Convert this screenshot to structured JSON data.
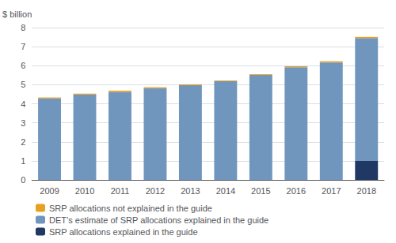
{
  "chart_data": {
    "type": "bar",
    "stacked": true,
    "categories": [
      "2009",
      "2010",
      "2011",
      "2012",
      "2013",
      "2014",
      "2015",
      "2016",
      "2017",
      "2018"
    ],
    "series": [
      {
        "name": "SRP allocations explained in the guide",
        "color": "#1f3864",
        "values": [
          0.0,
          0.0,
          0.0,
          0.0,
          0.0,
          0.0,
          0.0,
          0.0,
          0.0,
          1.0
        ]
      },
      {
        "name": "DET’s estimate of SRP allocations explained in the guide",
        "color": "#7096be",
        "values": [
          4.28,
          4.48,
          4.62,
          4.82,
          4.97,
          5.18,
          5.51,
          5.92,
          6.17,
          6.45
        ]
      },
      {
        "name": "SRP allocations not explained in the guide",
        "color": "#e8a020",
        "values": [
          0.05,
          0.05,
          0.07,
          0.05,
          0.05,
          0.04,
          0.04,
          0.05,
          0.06,
          0.06
        ]
      }
    ],
    "ylabel": "$ billion",
    "ylim": [
      0,
      8
    ],
    "yticks": [
      0,
      1,
      2,
      3,
      4,
      5,
      6,
      7,
      8
    ],
    "grid": true,
    "legend": "bottom left"
  }
}
